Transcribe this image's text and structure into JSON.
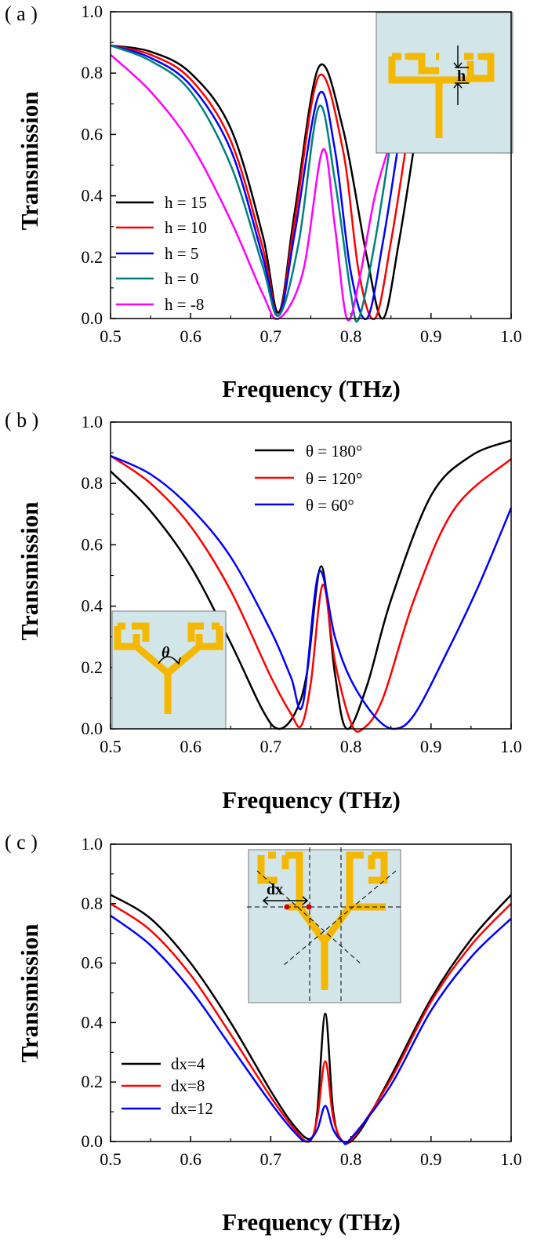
{
  "chart_data": [
    {
      "type": "line",
      "panel_label": "( a )",
      "xlabel": "Frequency (THz)",
      "ylabel": "Transmission",
      "xlim": [
        0.5,
        1.0
      ],
      "ylim": [
        0.0,
        1.0
      ],
      "xticks": [
        "0.5",
        "0.6",
        "0.7",
        "0.8",
        "0.9",
        "1.0"
      ],
      "yticks": [
        "0.0",
        "0.2",
        "0.4",
        "0.6",
        "0.8",
        "1.0"
      ],
      "legend_position": "left",
      "inset": {
        "position": "top-right",
        "label": "h"
      },
      "series": [
        {
          "name": "h = 15",
          "color": "#000000",
          "x": [
            0.5,
            0.55,
            0.6,
            0.65,
            0.69,
            0.71,
            0.73,
            0.76,
            0.79,
            0.82,
            0.84,
            0.86,
            0.88
          ],
          "y": [
            0.89,
            0.87,
            0.8,
            0.62,
            0.27,
            0.02,
            0.35,
            0.82,
            0.62,
            0.2,
            0.0,
            0.25,
            0.58
          ]
        },
        {
          "name": "h = 10",
          "color": "#ff0000",
          "x": [
            0.5,
            0.55,
            0.6,
            0.65,
            0.69,
            0.71,
            0.73,
            0.76,
            0.79,
            0.81,
            0.83,
            0.85,
            0.87
          ],
          "y": [
            0.89,
            0.86,
            0.78,
            0.58,
            0.23,
            0.01,
            0.32,
            0.79,
            0.55,
            0.15,
            0.0,
            0.25,
            0.58
          ]
        },
        {
          "name": "h = 5",
          "color": "#0000ff",
          "x": [
            0.5,
            0.55,
            0.6,
            0.65,
            0.69,
            0.71,
            0.73,
            0.76,
            0.78,
            0.8,
            0.82,
            0.84,
            0.86
          ],
          "y": [
            0.89,
            0.85,
            0.76,
            0.55,
            0.2,
            0.01,
            0.28,
            0.73,
            0.55,
            0.15,
            0.0,
            0.25,
            0.58
          ]
        },
        {
          "name": "h = 0",
          "color": "#008080",
          "x": [
            0.5,
            0.55,
            0.6,
            0.65,
            0.69,
            0.71,
            0.735,
            0.76,
            0.78,
            0.8,
            0.81,
            0.83,
            0.85
          ],
          "y": [
            0.89,
            0.84,
            0.74,
            0.5,
            0.17,
            0.01,
            0.25,
            0.69,
            0.45,
            0.08,
            0.0,
            0.25,
            0.58
          ]
        },
        {
          "name": "h = -8",
          "color": "#ff00ff",
          "x": [
            0.5,
            0.55,
            0.6,
            0.65,
            0.69,
            0.71,
            0.74,
            0.765,
            0.78,
            0.795,
            0.81,
            0.83,
            0.85
          ],
          "y": [
            0.86,
            0.74,
            0.57,
            0.32,
            0.08,
            0.0,
            0.15,
            0.55,
            0.3,
            0.0,
            0.12,
            0.4,
            0.58
          ]
        }
      ]
    },
    {
      "type": "line",
      "panel_label": "( b )",
      "xlabel": "Frequency (THz)",
      "ylabel": "Transmission",
      "xlim": [
        0.5,
        1.0
      ],
      "ylim": [
        0.0,
        1.0
      ],
      "xticks": [
        "0.5",
        "0.6",
        "0.7",
        "0.8",
        "0.9",
        "1.0"
      ],
      "yticks": [
        "0.0",
        "0.2",
        "0.4",
        "0.6",
        "0.8",
        "1.0"
      ],
      "legend_position": "top-right",
      "inset": {
        "position": "bottom-left",
        "label": "θ"
      },
      "series": [
        {
          "name": "θ = 180°",
          "color": "#000000",
          "x": [
            0.5,
            0.55,
            0.6,
            0.65,
            0.69,
            0.71,
            0.73,
            0.745,
            0.763,
            0.78,
            0.795,
            0.82,
            0.85,
            0.9,
            0.95,
            1.0
          ],
          "y": [
            0.84,
            0.71,
            0.53,
            0.28,
            0.06,
            0.0,
            0.05,
            0.18,
            0.53,
            0.18,
            0.0,
            0.14,
            0.42,
            0.76,
            0.89,
            0.94
          ]
        },
        {
          "name": "θ = 120°",
          "color": "#ff0000",
          "x": [
            0.5,
            0.55,
            0.6,
            0.65,
            0.7,
            0.725,
            0.738,
            0.75,
            0.765,
            0.78,
            0.8,
            0.815,
            0.84,
            0.88,
            0.93,
            1.0
          ],
          "y": [
            0.89,
            0.8,
            0.66,
            0.45,
            0.17,
            0.05,
            0.01,
            0.15,
            0.47,
            0.22,
            0.02,
            0.0,
            0.1,
            0.43,
            0.72,
            0.88
          ]
        },
        {
          "name": "θ = 60°",
          "color": "#0000ff",
          "x": [
            0.5,
            0.55,
            0.6,
            0.65,
            0.7,
            0.725,
            0.74,
            0.76,
            0.78,
            0.8,
            0.83,
            0.855,
            0.88,
            0.92,
            0.96,
            1.0
          ],
          "y": [
            0.89,
            0.83,
            0.72,
            0.56,
            0.32,
            0.17,
            0.08,
            0.51,
            0.3,
            0.16,
            0.04,
            0.0,
            0.05,
            0.25,
            0.47,
            0.72
          ]
        }
      ]
    },
    {
      "type": "line",
      "panel_label": "( c )",
      "xlabel": "Frequency (THz)",
      "ylabel": "Transmission",
      "xlim": [
        0.5,
        1.0
      ],
      "ylim": [
        0.0,
        1.0
      ],
      "xticks": [
        "0.5",
        "0.6",
        "0.7",
        "0.8",
        "0.9",
        "1.0"
      ],
      "yticks": [
        "0.0",
        "0.2",
        "0.4",
        "0.6",
        "0.8",
        "1.0"
      ],
      "legend_position": "bottom-left",
      "inset": {
        "position": "top-center",
        "label": "dx"
      },
      "series": [
        {
          "name": "dx=4",
          "color": "#000000",
          "x": [
            0.5,
            0.55,
            0.6,
            0.65,
            0.7,
            0.73,
            0.75,
            0.758,
            0.768,
            0.778,
            0.79,
            0.81,
            0.85,
            0.9,
            0.95,
            1.0
          ],
          "y": [
            0.83,
            0.75,
            0.6,
            0.4,
            0.17,
            0.05,
            0.01,
            0.1,
            0.43,
            0.1,
            0.0,
            0.03,
            0.22,
            0.48,
            0.68,
            0.83
          ]
        },
        {
          "name": "dx=8",
          "color": "#ff0000",
          "x": [
            0.5,
            0.55,
            0.6,
            0.65,
            0.7,
            0.73,
            0.748,
            0.758,
            0.768,
            0.778,
            0.79,
            0.805,
            0.85,
            0.9,
            0.95,
            1.0
          ],
          "y": [
            0.8,
            0.71,
            0.56,
            0.36,
            0.15,
            0.04,
            0.0,
            0.08,
            0.27,
            0.08,
            0.0,
            0.02,
            0.21,
            0.47,
            0.66,
            0.8
          ]
        },
        {
          "name": "dx=12",
          "color": "#0000ff",
          "x": [
            0.5,
            0.55,
            0.6,
            0.65,
            0.7,
            0.73,
            0.745,
            0.758,
            0.768,
            0.778,
            0.79,
            0.8,
            0.85,
            0.9,
            0.95,
            1.0
          ],
          "y": [
            0.76,
            0.66,
            0.51,
            0.32,
            0.13,
            0.03,
            0.0,
            0.04,
            0.12,
            0.04,
            0.0,
            0.01,
            0.19,
            0.44,
            0.62,
            0.75
          ]
        }
      ]
    }
  ]
}
